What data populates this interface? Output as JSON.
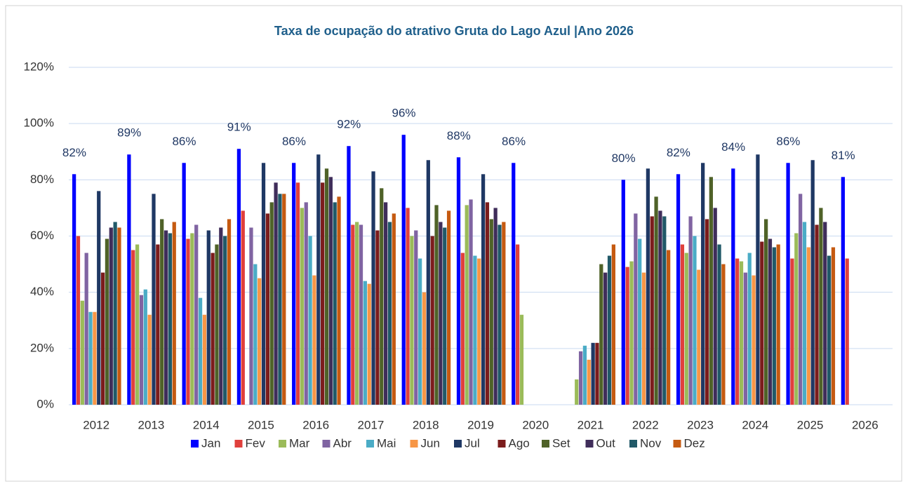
{
  "chart_data": {
    "type": "bar",
    "title": "Taxa de ocupação do atrativo Gruta do Lago Azul |Ano 2026",
    "categories": [
      "2012",
      "2013",
      "2014",
      "2015",
      "2016",
      "2017",
      "2018",
      "2019",
      "2020",
      "2021",
      "2022",
      "2023",
      "2024",
      "2025",
      "2026"
    ],
    "series": [
      {
        "name": "Jan",
        "color": "#0000ff",
        "values": [
          82,
          89,
          86,
          91,
          86,
          92,
          96,
          88,
          86,
          null,
          80,
          82,
          84,
          86,
          81
        ],
        "value_labels": [
          "82%",
          "89%",
          "86%",
          "91%",
          "86%",
          "92%",
          "96%",
          "88%",
          "86%",
          null,
          "80%",
          "82%",
          "84%",
          "86%",
          "81%"
        ]
      },
      {
        "name": "Fev",
        "color": "#e0403c",
        "values": [
          60,
          55,
          59,
          69,
          79,
          64,
          70,
          54,
          57,
          null,
          49,
          57,
          52,
          52,
          52
        ]
      },
      {
        "name": "Mar",
        "color": "#9bbb59",
        "values": [
          37,
          57,
          61,
          null,
          70,
          65,
          60,
          71,
          32,
          9,
          51,
          54,
          51,
          61,
          null
        ]
      },
      {
        "name": "Abr",
        "color": "#8064a2",
        "values": [
          54,
          39,
          64,
          63,
          72,
          64,
          62,
          73,
          null,
          19,
          68,
          67,
          47,
          75,
          null
        ]
      },
      {
        "name": "Mai",
        "color": "#4bacc6",
        "values": [
          33,
          41,
          38,
          50,
          60,
          44,
          52,
          53,
          null,
          21,
          59,
          60,
          54,
          65,
          null
        ]
      },
      {
        "name": "Jun",
        "color": "#f79646",
        "values": [
          33,
          32,
          32,
          45,
          46,
          43,
          40,
          52,
          null,
          16,
          47,
          48,
          46,
          56,
          null
        ]
      },
      {
        "name": "Jul",
        "color": "#1f3864",
        "values": [
          76,
          75,
          62,
          86,
          89,
          83,
          87,
          82,
          null,
          22,
          84,
          86,
          89,
          87,
          null
        ]
      },
      {
        "name": "Ago",
        "color": "#7b1c1c",
        "values": [
          47,
          57,
          54,
          68,
          79,
          62,
          60,
          72,
          null,
          22,
          67,
          66,
          58,
          64,
          null
        ]
      },
      {
        "name": "Set",
        "color": "#4f6228",
        "values": [
          59,
          66,
          57,
          72,
          84,
          77,
          71,
          66,
          null,
          50,
          74,
          81,
          66,
          70,
          null
        ]
      },
      {
        "name": "Out",
        "color": "#3f2d5a",
        "values": [
          63,
          62,
          63,
          79,
          81,
          72,
          65,
          70,
          null,
          47,
          69,
          70,
          59,
          65,
          null
        ]
      },
      {
        "name": "Nov",
        "color": "#215968",
        "values": [
          65,
          61,
          60,
          75,
          72,
          65,
          63,
          64,
          null,
          53,
          67,
          57,
          56,
          53,
          null
        ]
      },
      {
        "name": "Dez",
        "color": "#c55a11",
        "values": [
          63,
          65,
          66,
          75,
          74,
          68,
          69,
          65,
          null,
          57,
          55,
          50,
          57,
          56,
          null
        ]
      }
    ],
    "ylim": [
      0,
      120
    ],
    "yticks": [
      {
        "value": 0,
        "label": "0%"
      },
      {
        "value": 20,
        "label": "20%"
      },
      {
        "value": 40,
        "label": "40%"
      },
      {
        "value": 60,
        "label": "60%"
      },
      {
        "value": 80,
        "label": "80%"
      },
      {
        "value": 100,
        "label": "100%"
      },
      {
        "value": 120,
        "label": "120%"
      }
    ],
    "grid": true,
    "legend": "bottom"
  }
}
